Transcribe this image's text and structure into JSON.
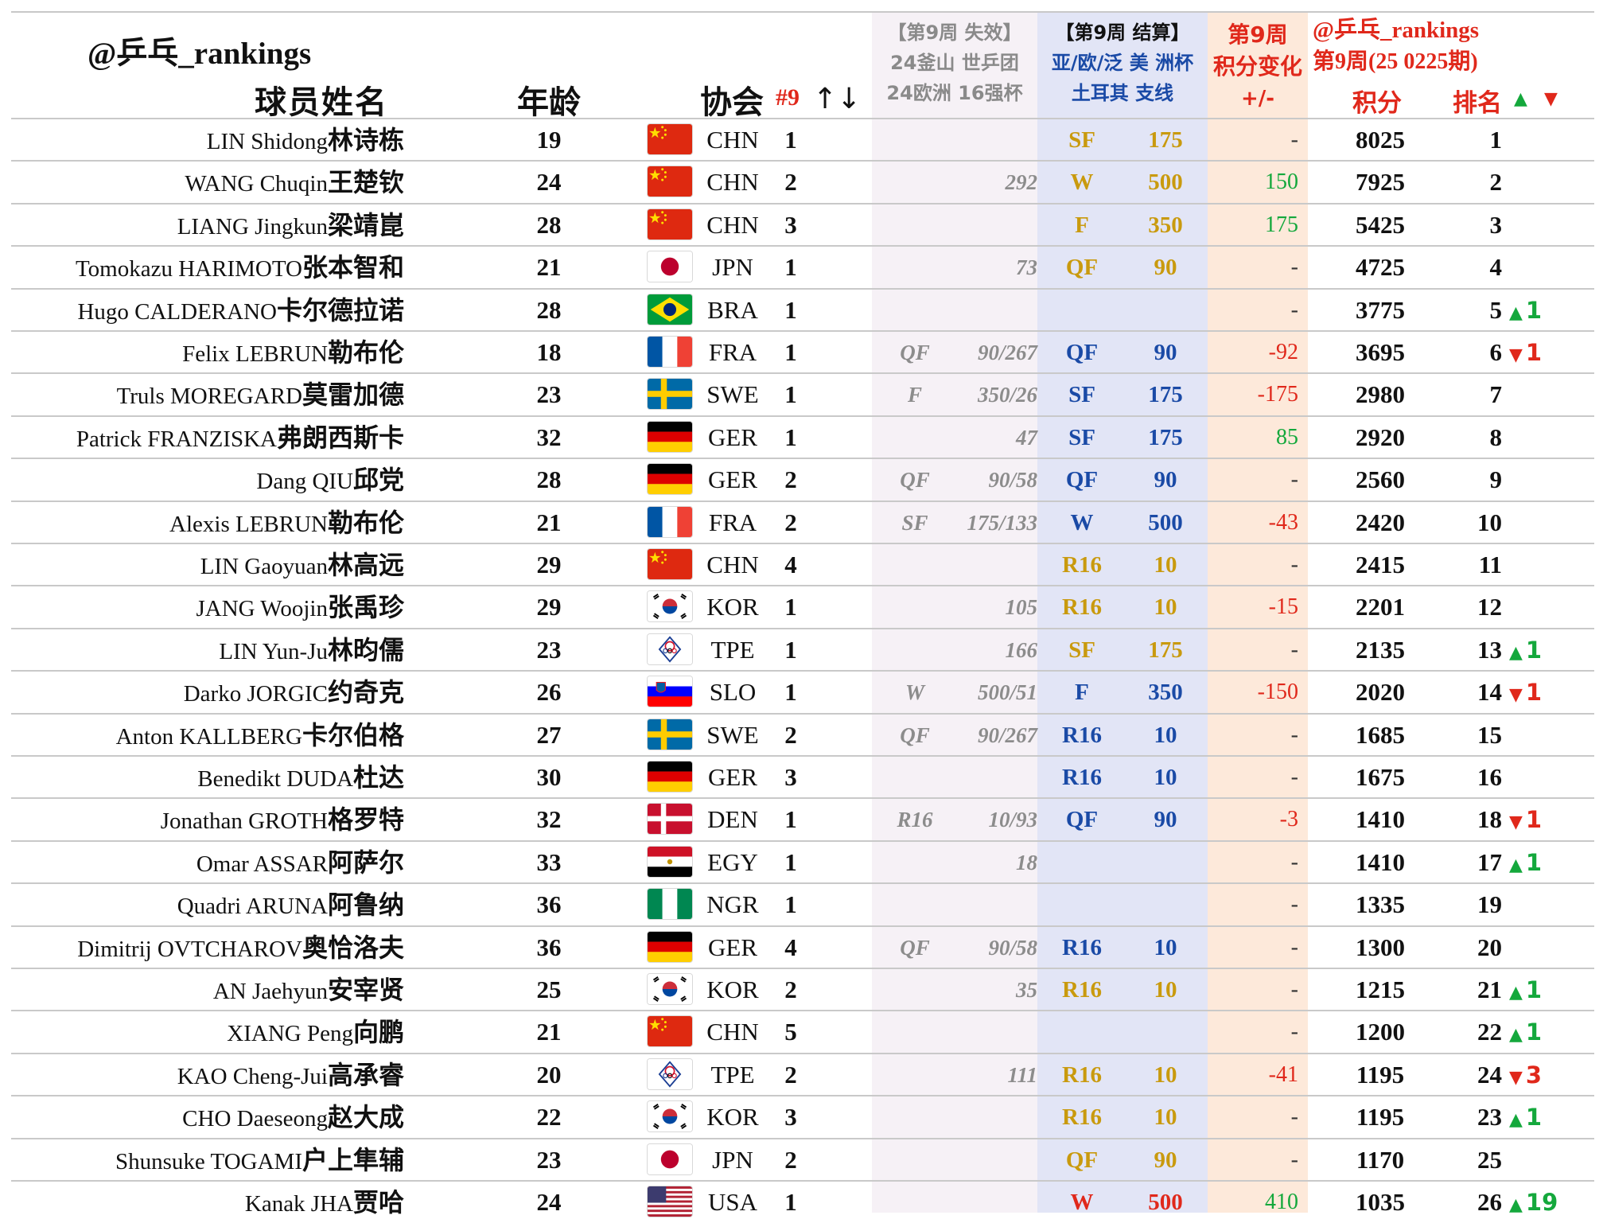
{
  "colors": {
    "red": "#e0281b",
    "green": "#14a83c",
    "gold": "#c99a0e",
    "blue": "#1a4aa6",
    "gray": "#8c8c8c",
    "band_expired": "#f6f1f6",
    "band_settle": "#e2e5f6",
    "band_change": "#fde9da"
  },
  "header": {
    "brand": "@乒乓_rankings",
    "name": "球员姓名",
    "age": "年龄",
    "assoc": "协会",
    "sort_label": "#9",
    "sort_arrows": "↑↓",
    "expired_l1": "【第9周 失效】",
    "expired_l2": "24釜山 世乒团",
    "expired_l3": "24欧洲 16强杯",
    "settle_l1": "【第9周 结算】",
    "settle_l2": "亚/欧/泛 美 洲杯",
    "settle_l3": "土耳其 支线",
    "change_l1": "第9周",
    "change_l2": "积分变化",
    "change_l3": "+/-",
    "right_brand": "@乒乓_rankings",
    "right_period": "第9周(25 0225期)",
    "points": "积分",
    "rank": "排名",
    "up_icon": "▲",
    "down_icon": "▼"
  },
  "rows": [
    {
      "en": "LIN Shidong",
      "cn": "林诗栋",
      "age": "19",
      "flag": "china-flag",
      "code": "CHN",
      "arank": "1",
      "e_rd": "",
      "e_pts": "",
      "s_rd": "SF",
      "s_pts": "175",
      "s_color": "gold",
      "chg": "-",
      "chg_color": "dark",
      "pts": "8025",
      "rank": "1",
      "mv_dir": "",
      "mv": ""
    },
    {
      "en": "WANG Chuqin",
      "cn": "王楚钦",
      "age": "24",
      "flag": "china-flag",
      "code": "CHN",
      "arank": "2",
      "e_rd": "",
      "e_pts": "292",
      "s_rd": "W",
      "s_pts": "500",
      "s_color": "gold",
      "chg": "150",
      "chg_color": "green",
      "pts": "7925",
      "rank": "2",
      "mv_dir": "",
      "mv": ""
    },
    {
      "en": "LIANG Jingkun",
      "cn": "梁靖崑",
      "age": "28",
      "flag": "china-flag",
      "code": "CHN",
      "arank": "3",
      "e_rd": "",
      "e_pts": "",
      "s_rd": "F",
      "s_pts": "350",
      "s_color": "gold",
      "chg": "175",
      "chg_color": "green",
      "pts": "5425",
      "rank": "3",
      "mv_dir": "",
      "mv": ""
    },
    {
      "en": "Tomokazu HARIMOTO",
      "cn": "张本智和",
      "age": "21",
      "flag": "japan-flag",
      "code": "JPN",
      "arank": "1",
      "e_rd": "",
      "e_pts": "73",
      "s_rd": "QF",
      "s_pts": "90",
      "s_color": "gold",
      "chg": "-",
      "chg_color": "dark",
      "pts": "4725",
      "rank": "4",
      "mv_dir": "",
      "mv": ""
    },
    {
      "en": "Hugo CALDERANO",
      "cn": "卡尔德拉诺",
      "age": "28",
      "flag": "brazil-flag",
      "code": "BRA",
      "arank": "1",
      "e_rd": "",
      "e_pts": "",
      "s_rd": "",
      "s_pts": "",
      "s_color": "gold",
      "chg": "-",
      "chg_color": "dark",
      "pts": "3775",
      "rank": "5",
      "mv_dir": "up",
      "mv": "1"
    },
    {
      "en": "Felix LEBRUN",
      "cn": "勒布伦",
      "age": "18",
      "flag": "france-flag",
      "code": "FRA",
      "arank": "1",
      "e_rd": "QF",
      "e_pts": "90/267",
      "s_rd": "QF",
      "s_pts": "90",
      "s_color": "blue",
      "chg": "-92",
      "chg_color": "red",
      "pts": "3695",
      "rank": "6",
      "mv_dir": "down",
      "mv": "1"
    },
    {
      "en": "Truls MOREGARD",
      "cn": "莫雷加德",
      "age": "23",
      "flag": "sweden-flag",
      "code": "SWE",
      "arank": "1",
      "e_rd": "F",
      "e_pts": "350/26",
      "s_rd": "SF",
      "s_pts": "175",
      "s_color": "blue",
      "chg": "-175",
      "chg_color": "red",
      "pts": "2980",
      "rank": "7",
      "mv_dir": "",
      "mv": ""
    },
    {
      "en": "Patrick FRANZISKA",
      "cn": "弗朗西斯卡",
      "age": "32",
      "flag": "germany-flag",
      "code": "GER",
      "arank": "1",
      "e_rd": "",
      "e_pts": "47",
      "s_rd": "SF",
      "s_pts": "175",
      "s_color": "blue",
      "chg": "85",
      "chg_color": "green",
      "pts": "2920",
      "rank": "8",
      "mv_dir": "",
      "mv": ""
    },
    {
      "en": "Dang QIU",
      "cn": "邱党",
      "age": "28",
      "flag": "germany-flag",
      "code": "GER",
      "arank": "2",
      "e_rd": "QF",
      "e_pts": "90/58",
      "s_rd": "QF",
      "s_pts": "90",
      "s_color": "blue",
      "chg": "-",
      "chg_color": "dark",
      "pts": "2560",
      "rank": "9",
      "mv_dir": "",
      "mv": ""
    },
    {
      "en": "Alexis LEBRUN",
      "cn": "勒布伦",
      "age": "21",
      "flag": "france-flag",
      "code": "FRA",
      "arank": "2",
      "e_rd": "SF",
      "e_pts": "175/133",
      "s_rd": "W",
      "s_pts": "500",
      "s_color": "blue",
      "chg": "-43",
      "chg_color": "red",
      "pts": "2420",
      "rank": "10",
      "mv_dir": "",
      "mv": ""
    },
    {
      "en": "LIN Gaoyuan",
      "cn": "林高远",
      "age": "29",
      "flag": "china-flag",
      "code": "CHN",
      "arank": "4",
      "e_rd": "",
      "e_pts": "",
      "s_rd": "R16",
      "s_pts": "10",
      "s_color": "gold",
      "chg": "-",
      "chg_color": "dark",
      "pts": "2415",
      "rank": "11",
      "mv_dir": "",
      "mv": ""
    },
    {
      "en": "JANG Woojin",
      "cn": "张禹珍",
      "age": "29",
      "flag": "korea-flag",
      "code": "KOR",
      "arank": "1",
      "e_rd": "",
      "e_pts": "105",
      "s_rd": "R16",
      "s_pts": "10",
      "s_color": "gold",
      "chg": "-15",
      "chg_color": "red",
      "pts": "2201",
      "rank": "12",
      "mv_dir": "",
      "mv": ""
    },
    {
      "en": "LIN Yun-Ju",
      "cn": "林昀儒",
      "age": "23",
      "flag": "tpe-flag",
      "code": "TPE",
      "arank": "1",
      "e_rd": "",
      "e_pts": "166",
      "s_rd": "SF",
      "s_pts": "175",
      "s_color": "gold",
      "chg": "-",
      "chg_color": "dark",
      "pts": "2135",
      "rank": "13",
      "mv_dir": "up",
      "mv": "1"
    },
    {
      "en": "Darko JORGIC",
      "cn": "约奇克",
      "age": "26",
      "flag": "slovenia-flag",
      "code": "SLO",
      "arank": "1",
      "e_rd": "W",
      "e_pts": "500/51",
      "s_rd": "F",
      "s_pts": "350",
      "s_color": "blue",
      "chg": "-150",
      "chg_color": "red",
      "pts": "2020",
      "rank": "14",
      "mv_dir": "down",
      "mv": "1"
    },
    {
      "en": "Anton KALLBERG",
      "cn": "卡尔伯格",
      "age": "27",
      "flag": "sweden-flag",
      "code": "SWE",
      "arank": "2",
      "e_rd": "QF",
      "e_pts": "90/267",
      "s_rd": "R16",
      "s_pts": "10",
      "s_color": "blue",
      "chg": "-",
      "chg_color": "dark",
      "pts": "1685",
      "rank": "15",
      "mv_dir": "",
      "mv": ""
    },
    {
      "en": "Benedikt DUDA",
      "cn": "杜达",
      "age": "30",
      "flag": "germany-flag",
      "code": "GER",
      "arank": "3",
      "e_rd": "",
      "e_pts": "",
      "s_rd": "R16",
      "s_pts": "10",
      "s_color": "blue",
      "chg": "-",
      "chg_color": "dark",
      "pts": "1675",
      "rank": "16",
      "mv_dir": "",
      "mv": ""
    },
    {
      "en": "Jonathan GROTH",
      "cn": "格罗特",
      "age": "32",
      "flag": "denmark-flag",
      "code": "DEN",
      "arank": "1",
      "e_rd": "R16",
      "e_pts": "10/93",
      "s_rd": "QF",
      "s_pts": "90",
      "s_color": "blue",
      "chg": "-3",
      "chg_color": "red",
      "pts": "1410",
      "rank": "18",
      "mv_dir": "down",
      "mv": "1"
    },
    {
      "en": "Omar ASSAR",
      "cn": "阿萨尔",
      "age": "33",
      "flag": "egypt-flag",
      "code": "EGY",
      "arank": "1",
      "e_rd": "",
      "e_pts": "18",
      "s_rd": "",
      "s_pts": "",
      "s_color": "gold",
      "chg": "-",
      "chg_color": "dark",
      "pts": "1410",
      "rank": "17",
      "mv_dir": "up",
      "mv": "1"
    },
    {
      "en": "Quadri ARUNA",
      "cn": "阿鲁纳",
      "age": "36",
      "flag": "nigeria-flag",
      "code": "NGR",
      "arank": "1",
      "e_rd": "",
      "e_pts": "",
      "s_rd": "",
      "s_pts": "",
      "s_color": "gold",
      "chg": "-",
      "chg_color": "dark",
      "pts": "1335",
      "rank": "19",
      "mv_dir": "",
      "mv": ""
    },
    {
      "en": "Dimitrij OVTCHAROV",
      "cn": "奥恰洛夫",
      "age": "36",
      "flag": "germany-flag",
      "code": "GER",
      "arank": "4",
      "e_rd": "QF",
      "e_pts": "90/58",
      "s_rd": "R16",
      "s_pts": "10",
      "s_color": "blue",
      "chg": "-",
      "chg_color": "dark",
      "pts": "1300",
      "rank": "20",
      "mv_dir": "",
      "mv": ""
    },
    {
      "en": "AN Jaehyun",
      "cn": "安宰贤",
      "age": "25",
      "flag": "korea-flag",
      "code": "KOR",
      "arank": "2",
      "e_rd": "",
      "e_pts": "35",
      "s_rd": "R16",
      "s_pts": "10",
      "s_color": "gold",
      "chg": "-",
      "chg_color": "dark",
      "pts": "1215",
      "rank": "21",
      "mv_dir": "up",
      "mv": "1"
    },
    {
      "en": "XIANG Peng",
      "cn": "向鹏",
      "age": "21",
      "flag": "china-flag",
      "code": "CHN",
      "arank": "5",
      "e_rd": "",
      "e_pts": "",
      "s_rd": "",
      "s_pts": "",
      "s_color": "gold",
      "chg": "-",
      "chg_color": "dark",
      "pts": "1200",
      "rank": "22",
      "mv_dir": "up",
      "mv": "1"
    },
    {
      "en": "KAO Cheng-Jui",
      "cn": "高承睿",
      "age": "20",
      "flag": "tpe-flag",
      "code": "TPE",
      "arank": "2",
      "e_rd": "",
      "e_pts": "111",
      "s_rd": "R16",
      "s_pts": "10",
      "s_color": "gold",
      "chg": "-41",
      "chg_color": "red",
      "pts": "1195",
      "rank": "24",
      "mv_dir": "down",
      "mv": "3"
    },
    {
      "en": "CHO Daeseong",
      "cn": "赵大成",
      "age": "22",
      "flag": "korea-flag",
      "code": "KOR",
      "arank": "3",
      "e_rd": "",
      "e_pts": "",
      "s_rd": "R16",
      "s_pts": "10",
      "s_color": "gold",
      "chg": "-",
      "chg_color": "dark",
      "pts": "1195",
      "rank": "23",
      "mv_dir": "up",
      "mv": "1"
    },
    {
      "en": "Shunsuke TOGAMI",
      "cn": "户上隼辅",
      "age": "23",
      "flag": "japan-flag",
      "code": "JPN",
      "arank": "2",
      "e_rd": "",
      "e_pts": "",
      "s_rd": "QF",
      "s_pts": "90",
      "s_color": "gold",
      "chg": "-",
      "chg_color": "dark",
      "pts": "1170",
      "rank": "25",
      "mv_dir": "",
      "mv": ""
    },
    {
      "en": "Kanak JHA",
      "cn": "贾哈",
      "age": "24",
      "flag": "usa-flag",
      "code": "USA",
      "arank": "1",
      "e_rd": "",
      "e_pts": "",
      "s_rd": "W",
      "s_pts": "500",
      "s_color": "red",
      "chg": "410",
      "chg_color": "green",
      "pts": "1035",
      "rank": "26",
      "mv_dir": "up",
      "mv": "19"
    }
  ]
}
